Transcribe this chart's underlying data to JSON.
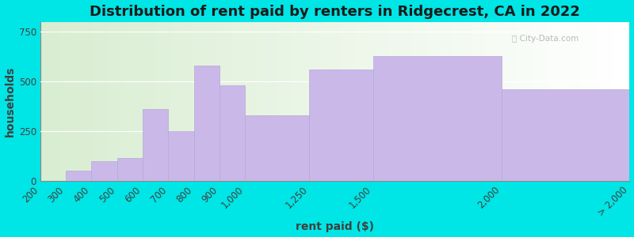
{
  "title": "Distribution of rent paid by renters in Ridgecrest, CA in 2022",
  "xlabel": "rent paid ($)",
  "ylabel": "households",
  "bins_left": [
    200,
    300,
    400,
    500,
    600,
    700,
    800,
    900,
    1000,
    1250,
    1500,
    2000
  ],
  "bins_right": [
    300,
    400,
    500,
    600,
    700,
    800,
    900,
    1000,
    1250,
    1500,
    2000,
    2500
  ],
  "values": [
    0,
    50,
    100,
    115,
    360,
    250,
    580,
    480,
    330,
    560,
    630,
    460
  ],
  "last_bar_label": "> 2,000",
  "xtick_positions": [
    200,
    300,
    400,
    500,
    600,
    700,
    800,
    900,
    1000,
    1250,
    1500,
    2000,
    2500
  ],
  "xtick_labels": [
    "200",
    "300",
    "400",
    "500",
    "600",
    "700",
    "800",
    "900",
    "1,000",
    "1,250",
    "1,500",
    "2,000",
    "> 2,000"
  ],
  "bar_color": "#c9b8e8",
  "bar_edge_color": "#b8a8d8",
  "ylim": [
    0,
    800
  ],
  "yticks": [
    0,
    250,
    500,
    750
  ],
  "background_outer": "#00e5e5",
  "title_fontsize": 13,
  "axis_label_fontsize": 10,
  "tick_fontsize": 8.5
}
